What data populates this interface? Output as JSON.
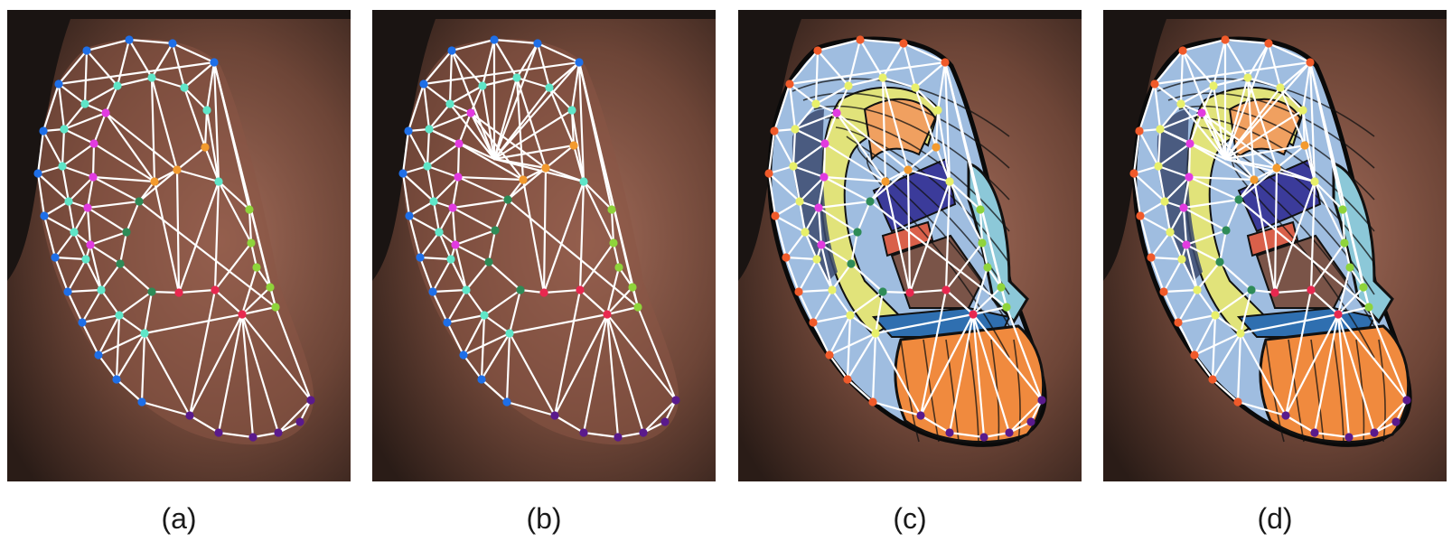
{
  "panels": [
    {
      "id": "a",
      "caption": "(a)",
      "overlay": "landmark-mesh"
    },
    {
      "id": "b",
      "caption": "(b)",
      "overlay": "landmark-mesh-variant"
    },
    {
      "id": "c",
      "caption": "(c)",
      "overlay": "segmentation-with-mesh"
    },
    {
      "id": "d",
      "caption": "(d)",
      "overlay": "segmentation-with-mesh-variant"
    }
  ],
  "colors": {
    "background_hair": "#1a1412",
    "skin": "#7a4f3f",
    "mesh_line": "#ffffff",
    "landmark_groups": [
      "#1e6fe8",
      "#5fe6c8",
      "#e23be0",
      "#f39a2e",
      "#2e8b57",
      "#8fd43b",
      "#e8284f",
      "#5a1a8c"
    ],
    "segment_regions": [
      "#9fbde0",
      "#e1e37a",
      "#f0a060",
      "#3b3b9a",
      "#d9604a",
      "#7a5448",
      "#2f6fb0",
      "#8cc8d8",
      "#f08a3e",
      "#3b4a6e"
    ]
  }
}
